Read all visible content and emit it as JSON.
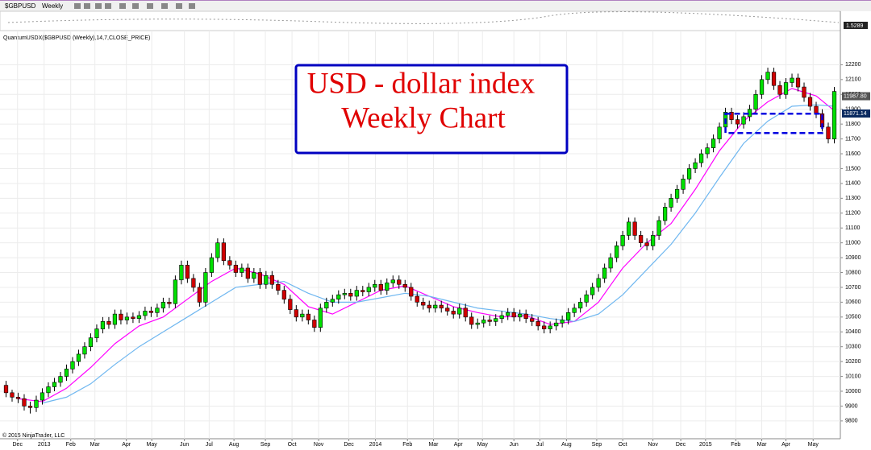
{
  "toolbar": {
    "symbol": "$GBPUSD",
    "interval": "Weekly"
  },
  "chart_data": {
    "type": "candlestick",
    "title": "USD - dollar index",
    "subtitle": "Weekly Chart",
    "indicator_label": "QuantumUSDX($GBPUSD (Weekly),14,7,CLOSE_PRICE)",
    "copyright": "© 2015 NinjaTrader, LLC",
    "panel_label": "1.5289",
    "up_color": "#00e000",
    "down_color": "#d00000",
    "grid": true,
    "xlim": [
      -1,
      138
    ],
    "ylim": [
      9680,
      12430
    ],
    "yticks": [
      9800,
      9900,
      10000,
      10100,
      10200,
      10300,
      10400,
      10500,
      10600,
      10700,
      10800,
      10900,
      11000,
      11100,
      11200,
      11300,
      11400,
      11500,
      11600,
      11700,
      11800,
      11900,
      12000,
      12100,
      12200
    ],
    "xticks": [
      {
        "value": 1.9,
        "label": "Dec"
      },
      {
        "value": 6.3,
        "label": "2013"
      },
      {
        "value": 10.7,
        "label": "Feb"
      },
      {
        "value": 14.7,
        "label": "Mar"
      },
      {
        "value": 19.9,
        "label": "Apr"
      },
      {
        "value": 24.1,
        "label": "May"
      },
      {
        "value": 29.5,
        "label": "Jun"
      },
      {
        "value": 33.6,
        "label": "Jul"
      },
      {
        "value": 37.7,
        "label": "Aug"
      },
      {
        "value": 42.9,
        "label": "Sep"
      },
      {
        "value": 47.3,
        "label": "Oct"
      },
      {
        "value": 51.7,
        "label": "Nov"
      },
      {
        "value": 56.7,
        "label": "Dec"
      },
      {
        "value": 61.1,
        "label": "2014"
      },
      {
        "value": 66.4,
        "label": "Feb"
      },
      {
        "value": 70.7,
        "label": "Mar"
      },
      {
        "value": 74.8,
        "label": "Apr"
      },
      {
        "value": 78.8,
        "label": "May"
      },
      {
        "value": 84,
        "label": "Jun"
      },
      {
        "value": 88.3,
        "label": "Jul"
      },
      {
        "value": 92.7,
        "label": "Aug"
      },
      {
        "value": 97.7,
        "label": "Sep"
      },
      {
        "value": 102,
        "label": "Oct"
      },
      {
        "value": 107,
        "label": "Nov"
      },
      {
        "value": 111.6,
        "label": "Dec"
      },
      {
        "value": 115.7,
        "label": "2015"
      },
      {
        "value": 120.7,
        "label": "Feb"
      },
      {
        "value": 125,
        "label": "Mar"
      },
      {
        "value": 129,
        "label": "Apr"
      },
      {
        "value": 133.5,
        "label": "May"
      }
    ],
    "candles": [
      [
        10040,
        10070,
        9960,
        9990
      ],
      [
        9990,
        10010,
        9930,
        9960
      ],
      [
        9960,
        9990,
        9920,
        9950
      ],
      [
        9950,
        9980,
        9870,
        9900
      ],
      [
        9900,
        9930,
        9850,
        9890
      ],
      [
        9890,
        9970,
        9860,
        9940
      ],
      [
        9940,
        10020,
        9910,
        9990
      ],
      [
        9990,
        10060,
        9960,
        10030
      ],
      [
        10030,
        10090,
        10000,
        10060
      ],
      [
        10060,
        10130,
        10030,
        10100
      ],
      [
        10100,
        10180,
        10070,
        10150
      ],
      [
        10150,
        10230,
        10120,
        10200
      ],
      [
        10200,
        10280,
        10170,
        10250
      ],
      [
        10250,
        10330,
        10220,
        10300
      ],
      [
        10300,
        10390,
        10270,
        10360
      ],
      [
        10360,
        10450,
        10330,
        10420
      ],
      [
        10420,
        10500,
        10390,
        10470
      ],
      [
        10470,
        10500,
        10420,
        10450
      ],
      [
        10450,
        10550,
        10420,
        10520
      ],
      [
        10520,
        10550,
        10450,
        10480
      ],
      [
        10480,
        10530,
        10450,
        10500
      ],
      [
        10500,
        10530,
        10460,
        10490
      ],
      [
        10490,
        10540,
        10460,
        10510
      ],
      [
        10510,
        10570,
        10480,
        10540
      ],
      [
        10540,
        10570,
        10500,
        10530
      ],
      [
        10530,
        10590,
        10500,
        10560
      ],
      [
        10560,
        10630,
        10530,
        10600
      ],
      [
        10600,
        10630,
        10560,
        10590
      ],
      [
        10590,
        10780,
        10560,
        10750
      ],
      [
        10750,
        10880,
        10720,
        10850
      ],
      [
        10850,
        10880,
        10730,
        10760
      ],
      [
        10760,
        10790,
        10670,
        10700
      ],
      [
        10700,
        10730,
        10570,
        10600
      ],
      [
        10600,
        10830,
        10570,
        10800
      ],
      [
        10800,
        10930,
        10770,
        10900
      ],
      [
        10900,
        11030,
        10870,
        11000
      ],
      [
        11000,
        11030,
        10850,
        10880
      ],
      [
        10880,
        10910,
        10820,
        10850
      ],
      [
        10850,
        10880,
        10770,
        10800
      ],
      [
        10800,
        10860,
        10770,
        10830
      ],
      [
        10830,
        10860,
        10730,
        10760
      ],
      [
        10760,
        10830,
        10730,
        10800
      ],
      [
        10800,
        10830,
        10690,
        10720
      ],
      [
        10720,
        10810,
        10690,
        10780
      ],
      [
        10780,
        10810,
        10690,
        10720
      ],
      [
        10720,
        10750,
        10650,
        10680
      ],
      [
        10680,
        10710,
        10590,
        10620
      ],
      [
        10620,
        10650,
        10520,
        10550
      ],
      [
        10550,
        10580,
        10470,
        10500
      ],
      [
        10500,
        10550,
        10470,
        10520
      ],
      [
        10520,
        10550,
        10450,
        10480
      ],
      [
        10480,
        10510,
        10400,
        10430
      ],
      [
        10430,
        10590,
        10400,
        10560
      ],
      [
        10560,
        10630,
        10530,
        10600
      ],
      [
        10600,
        10650,
        10570,
        10620
      ],
      [
        10620,
        10680,
        10590,
        10650
      ],
      [
        10650,
        10690,
        10620,
        10660
      ],
      [
        10660,
        10690,
        10610,
        10640
      ],
      [
        10640,
        10710,
        10610,
        10680
      ],
      [
        10680,
        10710,
        10640,
        10670
      ],
      [
        10670,
        10730,
        10640,
        10700
      ],
      [
        10700,
        10750,
        10670,
        10720
      ],
      [
        10720,
        10750,
        10650,
        10680
      ],
      [
        10680,
        10760,
        10650,
        10730
      ],
      [
        10730,
        10780,
        10700,
        10750
      ],
      [
        10750,
        10780,
        10690,
        10720
      ],
      [
        10720,
        10750,
        10670,
        10700
      ],
      [
        10700,
        10730,
        10610,
        10640
      ],
      [
        10640,
        10670,
        10570,
        10600
      ],
      [
        10600,
        10630,
        10550,
        10580
      ],
      [
        10580,
        10610,
        10530,
        10560
      ],
      [
        10560,
        10610,
        10530,
        10580
      ],
      [
        10580,
        10610,
        10530,
        10560
      ],
      [
        10560,
        10590,
        10510,
        10540
      ],
      [
        10540,
        10570,
        10490,
        10520
      ],
      [
        10520,
        10590,
        10490,
        10560
      ],
      [
        10560,
        10590,
        10470,
        10500
      ],
      [
        10500,
        10530,
        10420,
        10450
      ],
      [
        10450,
        10490,
        10420,
        10460
      ],
      [
        10460,
        10510,
        10430,
        10480
      ],
      [
        10480,
        10510,
        10440,
        10470
      ],
      [
        10470,
        10520,
        10440,
        10490
      ],
      [
        10490,
        10540,
        10460,
        10510
      ],
      [
        10510,
        10560,
        10480,
        10530
      ],
      [
        10530,
        10560,
        10470,
        10500
      ],
      [
        10500,
        10550,
        10470,
        10520
      ],
      [
        10520,
        10550,
        10460,
        10490
      ],
      [
        10490,
        10520,
        10440,
        10470
      ],
      [
        10470,
        10500,
        10410,
        10440
      ],
      [
        10440,
        10470,
        10390,
        10420
      ],
      [
        10420,
        10470,
        10390,
        10440
      ],
      [
        10440,
        10490,
        10410,
        10460
      ],
      [
        10460,
        10510,
        10430,
        10480
      ],
      [
        10480,
        10560,
        10450,
        10530
      ],
      [
        10530,
        10590,
        10500,
        10560
      ],
      [
        10560,
        10630,
        10530,
        10600
      ],
      [
        10600,
        10680,
        10570,
        10650
      ],
      [
        10650,
        10730,
        10620,
        10700
      ],
      [
        10700,
        10790,
        10670,
        10760
      ],
      [
        10760,
        10860,
        10730,
        10830
      ],
      [
        10830,
        10930,
        10800,
        10900
      ],
      [
        10900,
        11010,
        10870,
        10980
      ],
      [
        10980,
        11080,
        10950,
        11050
      ],
      [
        11050,
        11170,
        11020,
        11140
      ],
      [
        11140,
        11170,
        11020,
        11050
      ],
      [
        11050,
        11080,
        10970,
        11000
      ],
      [
        11000,
        11030,
        10950,
        10980
      ],
      [
        10980,
        11080,
        10950,
        11050
      ],
      [
        11050,
        11180,
        11020,
        11150
      ],
      [
        11150,
        11270,
        11120,
        11240
      ],
      [
        11240,
        11330,
        11210,
        11300
      ],
      [
        11300,
        11390,
        11270,
        11360
      ],
      [
        11360,
        11460,
        11330,
        11430
      ],
      [
        11430,
        11530,
        11400,
        11500
      ],
      [
        11500,
        11570,
        11470,
        11540
      ],
      [
        11540,
        11630,
        11510,
        11600
      ],
      [
        11600,
        11670,
        11570,
        11640
      ],
      [
        11640,
        11730,
        11610,
        11700
      ],
      [
        11700,
        11810,
        11670,
        11780
      ],
      [
        11780,
        11910,
        11750,
        11880
      ],
      [
        11880,
        11910,
        11800,
        11830
      ],
      [
        11830,
        11860,
        11770,
        11800
      ],
      [
        11800,
        11880,
        11770,
        11850
      ],
      [
        11850,
        11930,
        11820,
        11900
      ],
      [
        11900,
        12030,
        11870,
        12000
      ],
      [
        12000,
        12130,
        11970,
        12100
      ],
      [
        12100,
        12180,
        12070,
        12150
      ],
      [
        12150,
        12180,
        12030,
        12060
      ],
      [
        12060,
        12090,
        11970,
        12000
      ],
      [
        12000,
        12110,
        11970,
        12080
      ],
      [
        12080,
        12140,
        12050,
        12110
      ],
      [
        12110,
        12140,
        12020,
        12050
      ],
      [
        12050,
        12080,
        11950,
        11980
      ],
      [
        11980,
        12010,
        11890,
        11920
      ],
      [
        11920,
        11950,
        11840,
        11870
      ],
      [
        11870,
        11900,
        11750,
        11780
      ],
      [
        11780,
        11810,
        11670,
        11700
      ],
      [
        11700,
        12050,
        11670,
        12020
      ]
    ],
    "lines": [
      {
        "color": "#ff00ff",
        "x": [
          2,
          6,
          10,
          14,
          18,
          22,
          26,
          30,
          34,
          38,
          42,
          46,
          50,
          54,
          58,
          62,
          66,
          70,
          74,
          78,
          82,
          86,
          90,
          94,
          98,
          102,
          106,
          110,
          114,
          118,
          122,
          126,
          130,
          134,
          137
        ],
        "values": [
          9950,
          9930,
          10020,
          10160,
          10320,
          10440,
          10500,
          10620,
          10740,
          10830,
          10790,
          10720,
          10570,
          10520,
          10600,
          10680,
          10710,
          10640,
          10570,
          10530,
          10500,
          10510,
          10450,
          10470,
          10600,
          10830,
          11000,
          11130,
          11360,
          11620,
          11820,
          11950,
          12040,
          11990,
          11890
        ]
      },
      {
        "color": "#6fb7f0",
        "x": [
          6,
          10,
          14,
          18,
          22,
          26,
          30,
          34,
          38,
          42,
          46,
          50,
          54,
          58,
          62,
          66,
          70,
          74,
          78,
          82,
          86,
          90,
          94,
          98,
          102,
          106,
          110,
          114,
          118,
          122,
          126,
          130,
          134,
          137
        ],
        "values": [
          9920,
          9960,
          10050,
          10180,
          10300,
          10400,
          10500,
          10600,
          10700,
          10720,
          10740,
          10660,
          10600,
          10600,
          10630,
          10660,
          10640,
          10600,
          10560,
          10540,
          10520,
          10490,
          10470,
          10520,
          10650,
          10820,
          10990,
          11200,
          11440,
          11670,
          11820,
          11920,
          11930,
          11920
        ]
      }
    ],
    "box": {
      "x": [
        119,
        135
      ],
      "y": [
        11740,
        11870
      ]
    },
    "price_labels": [
      {
        "value": 11987.8,
        "label": "11987.80"
      },
      {
        "value": 11871.14,
        "label": "11871.14"
      }
    ]
  }
}
